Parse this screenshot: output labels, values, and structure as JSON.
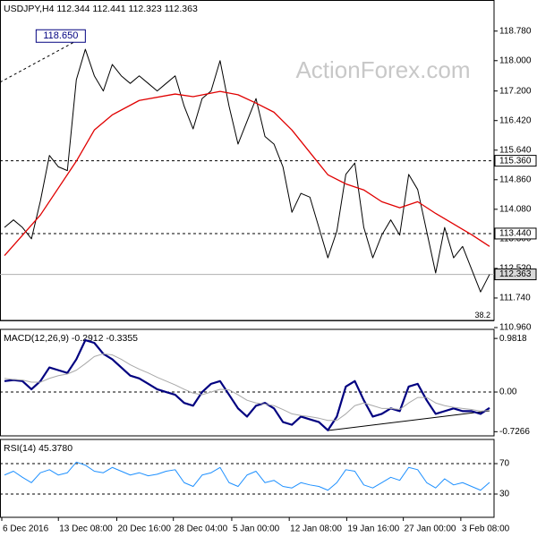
{
  "chart_data": [
    {
      "type": "line",
      "title": "USDJPY,H4  112.344 112.441 112.323 112.363",
      "watermark": "ActionForex.com",
      "x": [
        0,
        1,
        2,
        3,
        4,
        5,
        6,
        7,
        8,
        9,
        10,
        11,
        12,
        13,
        14,
        15,
        16,
        17,
        18,
        19,
        20,
        21,
        22,
        23,
        24,
        25,
        26,
        27,
        28,
        29,
        30,
        31,
        32,
        33,
        34,
        35,
        36,
        37,
        38,
        39,
        40,
        41,
        42,
        43,
        44,
        45,
        46,
        47,
        48,
        49,
        50,
        51,
        52,
        53,
        54
      ],
      "xlim": [
        -0.5,
        54.5
      ],
      "ylim": [
        110.96,
        119.6
      ],
      "yticks": [
        {
          "value": 118.78,
          "label": "118.780"
        },
        {
          "value": 118,
          "label": "118.000"
        },
        {
          "value": 117.2,
          "label": "117.200"
        },
        {
          "value": 116.42,
          "label": "116.420"
        },
        {
          "value": 115.64,
          "label": "115.640"
        },
        {
          "value": 114.86,
          "label": "114.860"
        },
        {
          "value": 114.08,
          "label": "114.080"
        },
        {
          "value": 113.3,
          "label": "113.300"
        },
        {
          "value": 112.52,
          "label": "112.520"
        },
        {
          "value": 111.74,
          "label": "111.740"
        },
        {
          "value": 110.96,
          "label": "110.960"
        }
      ],
      "series": [
        {
          "color": "#000000",
          "width": 1,
          "values": [
            113.6,
            113.8,
            113.6,
            113.3,
            114.3,
            115.5,
            115.2,
            115.1,
            117.5,
            118.3,
            117.6,
            117.2,
            117.9,
            117.6,
            117.4,
            117.6,
            117.4,
            117.2,
            117.4,
            117.6,
            116.8,
            116.2,
            117,
            117.2,
            118,
            116.8,
            115.8,
            116.4,
            117,
            116,
            115.8,
            115.2,
            114,
            114.5,
            114.4,
            113.6,
            112.8,
            113.5,
            115,
            115.3,
            113.6,
            112.8,
            113.4,
            113.8,
            113.4,
            115,
            114.6,
            113.5,
            112.4,
            113.6,
            112.8,
            113.1,
            112.5,
            111.9,
            112.363
          ]
        },
        {
          "color": "#e00000",
          "width": 1.3,
          "x": [
            0,
            4,
            8,
            10,
            12,
            15,
            19,
            21,
            24,
            26,
            28,
            30,
            32,
            34,
            36,
            38,
            40,
            42,
            44,
            46,
            48,
            50,
            52,
            54
          ],
          "values": [
            112.86,
            113.93,
            115.35,
            116.17,
            116.57,
            116.95,
            117.12,
            117.05,
            117.19,
            117.1,
            116.88,
            116.64,
            116.17,
            115.58,
            114.99,
            114.75,
            114.59,
            114.28,
            114.12,
            114.28,
            113.97,
            113.69,
            113.41,
            113.1
          ]
        }
      ],
      "hlines": [
        {
          "value": 115.36,
          "label": "115.360",
          "style": "dashed"
        },
        {
          "value": 113.44,
          "label": "113.440",
          "style": "dashed"
        },
        {
          "value": 112.363,
          "label": "112.363",
          "style": "current"
        },
        {
          "value": 111.14,
          "label": "38.2",
          "style": "fib"
        }
      ],
      "trendlines": [
        {
          "x": [
            -0.5,
            9
          ],
          "y": [
            117.43,
            118.65
          ],
          "style": "dashed"
        }
      ],
      "annotations": [
        {
          "text": "118.650",
          "x": 9,
          "y": 118.65
        }
      ]
    },
    {
      "type": "line",
      "title": "MACD(12,26,9) -0.2912 -0.3355",
      "x": [
        0,
        1,
        2,
        3,
        4,
        5,
        6,
        7,
        8,
        9,
        10,
        11,
        12,
        13,
        14,
        15,
        16,
        17,
        18,
        19,
        20,
        21,
        22,
        23,
        24,
        25,
        26,
        27,
        28,
        29,
        30,
        31,
        32,
        33,
        34,
        35,
        36,
        37,
        38,
        39,
        40,
        41,
        42,
        43,
        44,
        45,
        46,
        47,
        48,
        49,
        50,
        51,
        52,
        53,
        54
      ],
      "xlim": [
        -0.5,
        54.5
      ],
      "ylim": [
        -0.803,
        1.148
      ],
      "yticks": [
        0.9818,
        {
          "value": 0,
          "label": "0.00"
        },
        -0.7266
      ],
      "series": [
        {
          "color": "#000080",
          "width": 2.2,
          "values": [
            0.2,
            0.22,
            0.2,
            0.05,
            0.2,
            0.45,
            0.4,
            0.35,
            0.6,
            0.95,
            0.9,
            0.7,
            0.6,
            0.45,
            0.3,
            0.25,
            0.15,
            0.05,
            0,
            -0.05,
            -0.2,
            -0.25,
            0,
            0.15,
            0.2,
            -0.05,
            -0.3,
            -0.45,
            -0.25,
            -0.2,
            -0.3,
            -0.55,
            -0.6,
            -0.45,
            -0.5,
            -0.55,
            -0.7,
            -0.45,
            0.1,
            0.2,
            -0.15,
            -0.45,
            -0.4,
            -0.3,
            -0.35,
            0.1,
            0.15,
            -0.15,
            -0.4,
            -0.35,
            -0.3,
            -0.35,
            -0.35,
            -0.4,
            -0.2912
          ]
        },
        {
          "color": "#a8a8a8",
          "width": 1,
          "values": [
            0.25,
            0.23,
            0.22,
            0.18,
            0.18,
            0.25,
            0.3,
            0.33,
            0.4,
            0.52,
            0.65,
            0.7,
            0.68,
            0.6,
            0.5,
            0.42,
            0.35,
            0.27,
            0.2,
            0.13,
            0.05,
            -0.02,
            -0.05,
            0,
            0.05,
            0.04,
            -0.05,
            -0.15,
            -0.2,
            -0.22,
            -0.25,
            -0.32,
            -0.4,
            -0.43,
            -0.45,
            -0.48,
            -0.52,
            -0.52,
            -0.4,
            -0.25,
            -0.2,
            -0.25,
            -0.3,
            -0.3,
            -0.32,
            -0.2,
            -0.1,
            -0.1,
            -0.2,
            -0.25,
            -0.28,
            -0.3,
            -0.32,
            -0.35,
            -0.3355
          ]
        }
      ],
      "hlines": [
        {
          "value": 0,
          "style": "dashed"
        }
      ],
      "trendlines": [
        {
          "x": [
            36,
            54
          ],
          "y": [
            -0.705,
            -0.344
          ],
          "style": "solid"
        }
      ]
    },
    {
      "type": "line",
      "title": "RSI(14) 45.3780",
      "x": [
        0,
        1,
        2,
        3,
        4,
        5,
        6,
        7,
        8,
        9,
        10,
        11,
        12,
        13,
        14,
        15,
        16,
        17,
        18,
        19,
        20,
        21,
        22,
        23,
        24,
        25,
        26,
        27,
        28,
        29,
        30,
        31,
        32,
        33,
        34,
        35,
        36,
        37,
        38,
        39,
        40,
        41,
        42,
        43,
        44,
        45,
        46,
        47,
        48,
        49,
        50,
        51,
        52,
        53,
        54
      ],
      "xlim": [
        -0.5,
        54.5
      ],
      "ylim": [
        -0.6,
        101.8
      ],
      "yticks": [
        70,
        30
      ],
      "xticks": [
        {
          "value": -0.3,
          "label": "6 Dec 2016"
        },
        {
          "value": 6,
          "label": "13 Dec 08:00"
        },
        {
          "value": 12.5,
          "label": "20 Dec 16:00"
        },
        {
          "value": 18.8,
          "label": "28 Dec 04:00"
        },
        {
          "value": 25.3,
          "label": "5 Jan 00:00"
        },
        {
          "value": 31.7,
          "label": "12 Jan 08:00"
        },
        {
          "value": 38.1,
          "label": "19 Jan 16:00"
        },
        {
          "value": 44.4,
          "label": "27 Jan 00:00"
        },
        {
          "value": 50.8,
          "label": "3 Feb 08:00"
        }
      ],
      "series": [
        {
          "color": "#1e90ff",
          "width": 1,
          "values": [
            55,
            60,
            52,
            45,
            58,
            62,
            55,
            58,
            72,
            68,
            60,
            58,
            65,
            60,
            55,
            58,
            54,
            56,
            60,
            62,
            45,
            40,
            55,
            58,
            65,
            45,
            40,
            55,
            60,
            45,
            48,
            40,
            38,
            45,
            42,
            40,
            35,
            45,
            62,
            60,
            42,
            38,
            45,
            52,
            48,
            65,
            62,
            45,
            38,
            50,
            42,
            45,
            40,
            35,
            45.378
          ]
        }
      ],
      "hlines": [
        {
          "value": 70,
          "style": "dashed"
        },
        {
          "value": 30,
          "style": "dashed"
        }
      ]
    }
  ]
}
